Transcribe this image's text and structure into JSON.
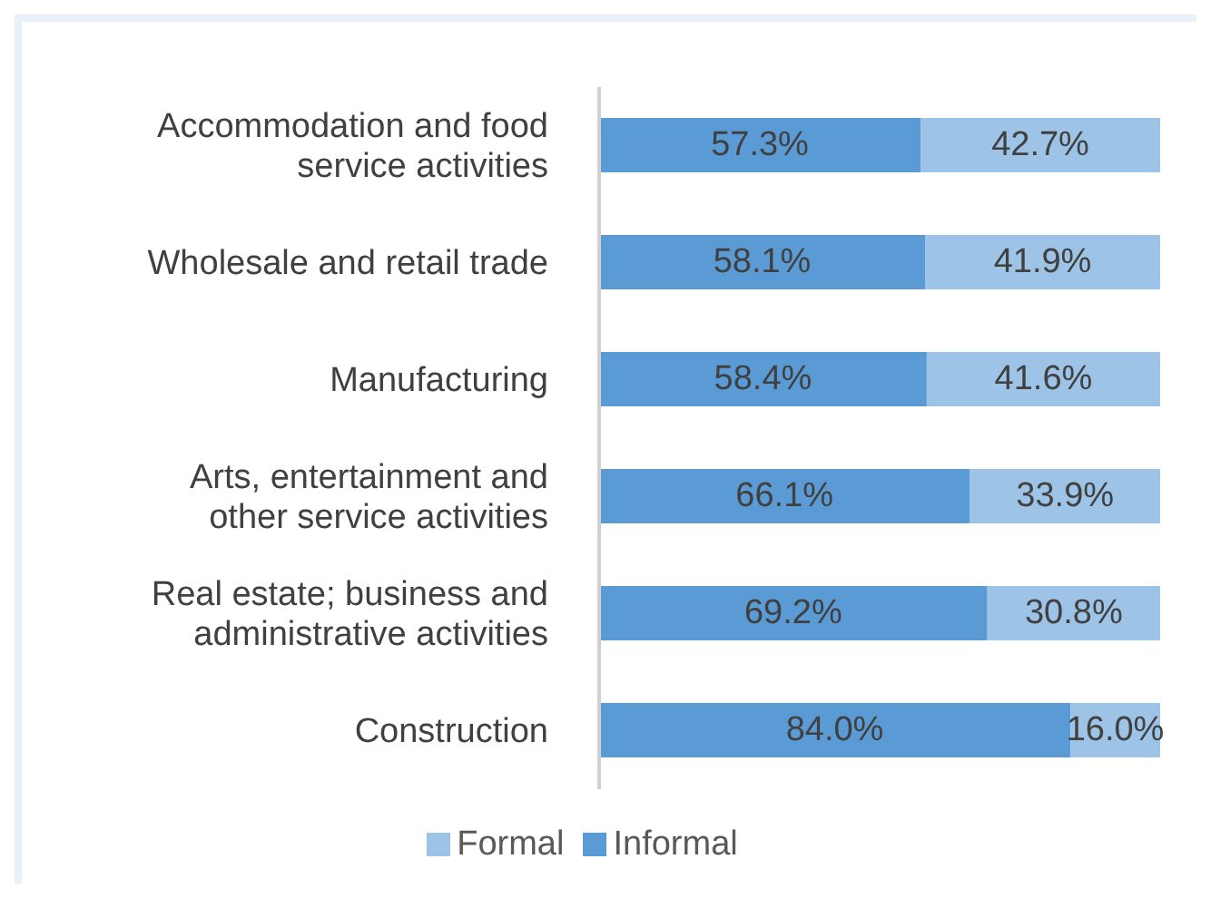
{
  "chart_data": {
    "type": "bar",
    "orientation": "horizontal",
    "stacked": true,
    "categories": [
      "Accommodation and food service activities",
      "Wholesale and retail trade",
      "Manufacturing",
      "Arts, entertainment and other service activities",
      "Real estate; business and administrative activities",
      "Construction"
    ],
    "series": [
      {
        "name": "Informal",
        "color": "#5b9bd5",
        "values": [
          57.3,
          58.1,
          58.4,
          66.1,
          69.2,
          84.0
        ],
        "value_labels": [
          "57.3%",
          "58.1%",
          "58.4%",
          "66.1%",
          "69.2%",
          "84.0%"
        ]
      },
      {
        "name": "Formal",
        "color": "#9dc3e6",
        "values": [
          42.7,
          41.9,
          41.6,
          33.9,
          30.8,
          16.0
        ],
        "value_labels": [
          "42.7%",
          "41.9%",
          "41.6%",
          "33.9%",
          "30.8%",
          "16.0%"
        ]
      }
    ],
    "xlim": [
      0,
      100
    ],
    "tick_labels": "y",
    "legend": "bottom"
  }
}
